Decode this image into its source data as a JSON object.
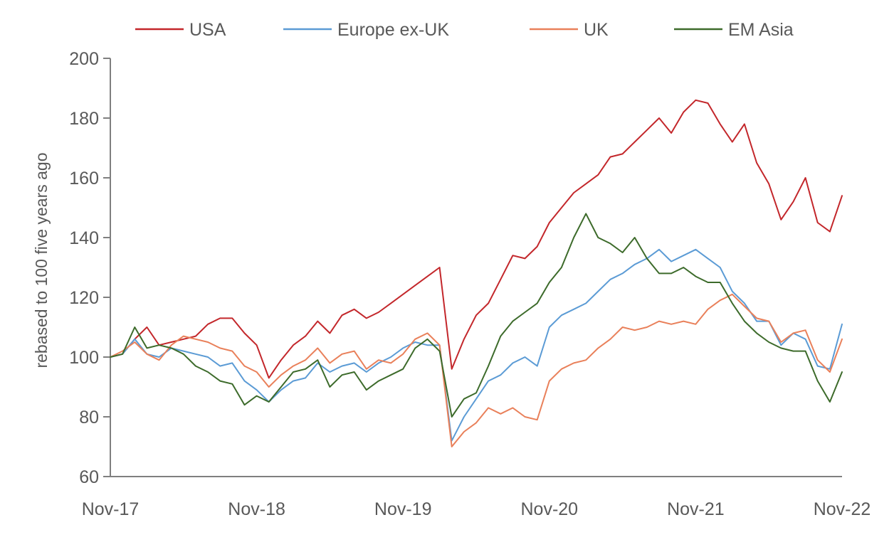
{
  "chart_data": {
    "type": "line",
    "ylabel": "rebased to 100 five years ago",
    "xlabel": "",
    "ylim": [
      60,
      200
    ],
    "yticks": [
      "60",
      "80",
      "100",
      "120",
      "140",
      "160",
      "180",
      "200"
    ],
    "xticks": [
      "Nov-17",
      "Nov-18",
      "Nov-19",
      "Nov-20",
      "Nov-21",
      "Nov-22"
    ],
    "xlim": [
      "2017-11",
      "2022-11"
    ],
    "legend_position": "top",
    "grid": false,
    "series": [
      {
        "name": "USA",
        "color": "#c3272b",
        "points": [
          [
            "2017-11",
            100
          ],
          [
            "2017-12",
            101
          ],
          [
            "2018-01",
            106
          ],
          [
            "2018-02",
            110
          ],
          [
            "2018-03",
            104
          ],
          [
            "2018-04",
            105
          ],
          [
            "2018-05",
            106
          ],
          [
            "2018-06",
            107
          ],
          [
            "2018-07",
            111
          ],
          [
            "2018-08",
            113
          ],
          [
            "2018-09",
            113
          ],
          [
            "2018-10",
            108
          ],
          [
            "2018-11",
            104
          ],
          [
            "2018-12",
            93
          ],
          [
            "2019-01",
            99
          ],
          [
            "2019-02",
            104
          ],
          [
            "2019-03",
            107
          ],
          [
            "2019-04",
            112
          ],
          [
            "2019-05",
            108
          ],
          [
            "2019-06",
            114
          ],
          [
            "2019-07",
            116
          ],
          [
            "2019-08",
            113
          ],
          [
            "2019-09",
            115
          ],
          [
            "2019-10",
            118
          ],
          [
            "2019-11",
            121
          ],
          [
            "2019-12",
            124
          ],
          [
            "2020-01",
            127
          ],
          [
            "2020-02",
            130
          ],
          [
            "2020-03",
            96
          ],
          [
            "2020-04",
            106
          ],
          [
            "2020-05",
            114
          ],
          [
            "2020-06",
            118
          ],
          [
            "2020-07",
            126
          ],
          [
            "2020-08",
            134
          ],
          [
            "2020-09",
            133
          ],
          [
            "2020-10",
            137
          ],
          [
            "2020-11",
            145
          ],
          [
            "2020-12",
            150
          ],
          [
            "2021-01",
            155
          ],
          [
            "2021-02",
            158
          ],
          [
            "2021-03",
            161
          ],
          [
            "2021-04",
            167
          ],
          [
            "2021-05",
            168
          ],
          [
            "2021-06",
            172
          ],
          [
            "2021-07",
            176
          ],
          [
            "2021-08",
            180
          ],
          [
            "2021-09",
            175
          ],
          [
            "2021-10",
            182
          ],
          [
            "2021-11",
            186
          ],
          [
            "2021-12",
            185
          ],
          [
            "2022-01",
            178
          ],
          [
            "2022-02",
            172
          ],
          [
            "2022-03",
            178
          ],
          [
            "2022-04",
            165
          ],
          [
            "2022-05",
            158
          ],
          [
            "2022-06",
            146
          ],
          [
            "2022-07",
            152
          ],
          [
            "2022-08",
            160
          ],
          [
            "2022-09",
            145
          ],
          [
            "2022-10",
            142
          ],
          [
            "2022-11",
            154
          ]
        ]
      },
      {
        "name": "Europe ex-UK",
        "color": "#5b9bd5",
        "points": [
          [
            "2017-11",
            100
          ],
          [
            "2017-12",
            101
          ],
          [
            "2018-01",
            106
          ],
          [
            "2018-02",
            101
          ],
          [
            "2018-03",
            100
          ],
          [
            "2018-04",
            103
          ],
          [
            "2018-05",
            102
          ],
          [
            "2018-06",
            101
          ],
          [
            "2018-07",
            100
          ],
          [
            "2018-08",
            97
          ],
          [
            "2018-09",
            98
          ],
          [
            "2018-10",
            92
          ],
          [
            "2018-11",
            89
          ],
          [
            "2018-12",
            85
          ],
          [
            "2019-01",
            89
          ],
          [
            "2019-02",
            92
          ],
          [
            "2019-03",
            93
          ],
          [
            "2019-04",
            98
          ],
          [
            "2019-05",
            95
          ],
          [
            "2019-06",
            97
          ],
          [
            "2019-07",
            98
          ],
          [
            "2019-08",
            95
          ],
          [
            "2019-09",
            98
          ],
          [
            "2019-10",
            100
          ],
          [
            "2019-11",
            103
          ],
          [
            "2019-12",
            105
          ],
          [
            "2020-01",
            104
          ],
          [
            "2020-02",
            104
          ],
          [
            "2020-03",
            72
          ],
          [
            "2020-04",
            80
          ],
          [
            "2020-05",
            86
          ],
          [
            "2020-06",
            92
          ],
          [
            "2020-07",
            94
          ],
          [
            "2020-08",
            98
          ],
          [
            "2020-09",
            100
          ],
          [
            "2020-10",
            97
          ],
          [
            "2020-11",
            110
          ],
          [
            "2020-12",
            114
          ],
          [
            "2021-01",
            116
          ],
          [
            "2021-02",
            118
          ],
          [
            "2021-03",
            122
          ],
          [
            "2021-04",
            126
          ],
          [
            "2021-05",
            128
          ],
          [
            "2021-06",
            131
          ],
          [
            "2021-07",
            133
          ],
          [
            "2021-08",
            136
          ],
          [
            "2021-09",
            132
          ],
          [
            "2021-10",
            134
          ],
          [
            "2021-11",
            136
          ],
          [
            "2021-12",
            133
          ],
          [
            "2022-01",
            130
          ],
          [
            "2022-02",
            122
          ],
          [
            "2022-03",
            118
          ],
          [
            "2022-04",
            112
          ],
          [
            "2022-05",
            112
          ],
          [
            "2022-06",
            104
          ],
          [
            "2022-07",
            108
          ],
          [
            "2022-08",
            106
          ],
          [
            "2022-09",
            97
          ],
          [
            "2022-10",
            96
          ],
          [
            "2022-11",
            111
          ]
        ]
      },
      {
        "name": "UK",
        "color": "#e9805a",
        "points": [
          [
            "2017-11",
            100
          ],
          [
            "2017-12",
            102
          ],
          [
            "2018-01",
            105
          ],
          [
            "2018-02",
            101
          ],
          [
            "2018-03",
            99
          ],
          [
            "2018-04",
            104
          ],
          [
            "2018-05",
            107
          ],
          [
            "2018-06",
            106
          ],
          [
            "2018-07",
            105
          ],
          [
            "2018-08",
            103
          ],
          [
            "2018-09",
            102
          ],
          [
            "2018-10",
            97
          ],
          [
            "2018-11",
            95
          ],
          [
            "2018-12",
            90
          ],
          [
            "2019-01",
            94
          ],
          [
            "2019-02",
            97
          ],
          [
            "2019-03",
            99
          ],
          [
            "2019-04",
            103
          ],
          [
            "2019-05",
            98
          ],
          [
            "2019-06",
            101
          ],
          [
            "2019-07",
            102
          ],
          [
            "2019-08",
            96
          ],
          [
            "2019-09",
            99
          ],
          [
            "2019-10",
            98
          ],
          [
            "2019-11",
            101
          ],
          [
            "2019-12",
            106
          ],
          [
            "2020-01",
            108
          ],
          [
            "2020-02",
            104
          ],
          [
            "2020-03",
            70
          ],
          [
            "2020-04",
            75
          ],
          [
            "2020-05",
            78
          ],
          [
            "2020-06",
            83
          ],
          [
            "2020-07",
            81
          ],
          [
            "2020-08",
            83
          ],
          [
            "2020-09",
            80
          ],
          [
            "2020-10",
            79
          ],
          [
            "2020-11",
            92
          ],
          [
            "2020-12",
            96
          ],
          [
            "2021-01",
            98
          ],
          [
            "2021-02",
            99
          ],
          [
            "2021-03",
            103
          ],
          [
            "2021-04",
            106
          ],
          [
            "2021-05",
            110
          ],
          [
            "2021-06",
            109
          ],
          [
            "2021-07",
            110
          ],
          [
            "2021-08",
            112
          ],
          [
            "2021-09",
            111
          ],
          [
            "2021-10",
            112
          ],
          [
            "2021-11",
            111
          ],
          [
            "2021-12",
            116
          ],
          [
            "2022-01",
            119
          ],
          [
            "2022-02",
            121
          ],
          [
            "2022-03",
            117
          ],
          [
            "2022-04",
            113
          ],
          [
            "2022-05",
            112
          ],
          [
            "2022-06",
            105
          ],
          [
            "2022-07",
            108
          ],
          [
            "2022-08",
            109
          ],
          [
            "2022-09",
            99
          ],
          [
            "2022-10",
            95
          ],
          [
            "2022-11",
            106
          ]
        ]
      },
      {
        "name": "EM Asia",
        "color": "#3d6b2b",
        "points": [
          [
            "2017-11",
            100
          ],
          [
            "2017-12",
            101
          ],
          [
            "2018-01",
            110
          ],
          [
            "2018-02",
            103
          ],
          [
            "2018-03",
            104
          ],
          [
            "2018-04",
            103
          ],
          [
            "2018-05",
            101
          ],
          [
            "2018-06",
            97
          ],
          [
            "2018-07",
            95
          ],
          [
            "2018-08",
            92
          ],
          [
            "2018-09",
            91
          ],
          [
            "2018-10",
            84
          ],
          [
            "2018-11",
            87
          ],
          [
            "2018-12",
            85
          ],
          [
            "2019-01",
            90
          ],
          [
            "2019-02",
            95
          ],
          [
            "2019-03",
            96
          ],
          [
            "2019-04",
            99
          ],
          [
            "2019-05",
            90
          ],
          [
            "2019-06",
            94
          ],
          [
            "2019-07",
            95
          ],
          [
            "2019-08",
            89
          ],
          [
            "2019-09",
            92
          ],
          [
            "2019-10",
            94
          ],
          [
            "2019-11",
            96
          ],
          [
            "2019-12",
            103
          ],
          [
            "2020-01",
            106
          ],
          [
            "2020-02",
            102
          ],
          [
            "2020-03",
            80
          ],
          [
            "2020-04",
            86
          ],
          [
            "2020-05",
            88
          ],
          [
            "2020-06",
            97
          ],
          [
            "2020-07",
            107
          ],
          [
            "2020-08",
            112
          ],
          [
            "2020-09",
            115
          ],
          [
            "2020-10",
            118
          ],
          [
            "2020-11",
            125
          ],
          [
            "2020-12",
            130
          ],
          [
            "2021-01",
            140
          ],
          [
            "2021-02",
            148
          ],
          [
            "2021-03",
            140
          ],
          [
            "2021-04",
            138
          ],
          [
            "2021-05",
            135
          ],
          [
            "2021-06",
            140
          ],
          [
            "2021-07",
            133
          ],
          [
            "2021-08",
            128
          ],
          [
            "2021-09",
            128
          ],
          [
            "2021-10",
            130
          ],
          [
            "2021-11",
            127
          ],
          [
            "2021-12",
            125
          ],
          [
            "2022-01",
            125
          ],
          [
            "2022-02",
            118
          ],
          [
            "2022-03",
            112
          ],
          [
            "2022-04",
            108
          ],
          [
            "2022-05",
            105
          ],
          [
            "2022-06",
            103
          ],
          [
            "2022-07",
            102
          ],
          [
            "2022-08",
            102
          ],
          [
            "2022-09",
            92
          ],
          [
            "2022-10",
            85
          ],
          [
            "2022-11",
            95
          ]
        ]
      }
    ]
  }
}
